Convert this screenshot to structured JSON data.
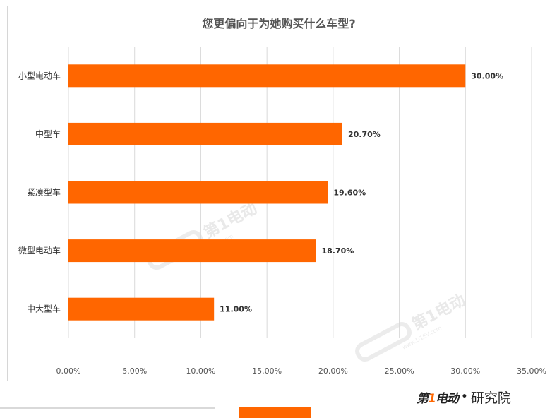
{
  "chart_data": {
    "type": "bar",
    "orientation": "horizontal",
    "title": "您更偏向于为她购买什么车型?",
    "categories": [
      "小型电动车",
      "中型车",
      "紧凑型车",
      "微型电动车",
      "中大型车"
    ],
    "values": [
      30.0,
      20.7,
      19.6,
      18.7,
      11.0
    ],
    "value_labels": [
      "30.00%",
      "20.70%",
      "19.60%",
      "18.70%",
      "11.00%"
    ],
    "xlim": [
      0,
      35
    ],
    "xticks": [
      0,
      5,
      10,
      15,
      20,
      25,
      30,
      35
    ],
    "xtick_labels": [
      "0.00%",
      "5.00%",
      "10.00%",
      "15.00%",
      "20.00%",
      "25.00%",
      "30.00%",
      "35.00%"
    ],
    "grid": true,
    "bar_color": "#ff6600",
    "grid_color": "#d9d9d9"
  },
  "watermark": {
    "brand": "第1电动",
    "url": "www.D1EV.com"
  },
  "footer": {
    "logo_brand_prefix": "第",
    "logo_brand_one": "1",
    "logo_brand_suffix": "电动",
    "logo_separator": "•",
    "logo_institute": "研究院",
    "accent_color": "#ff6600"
  }
}
